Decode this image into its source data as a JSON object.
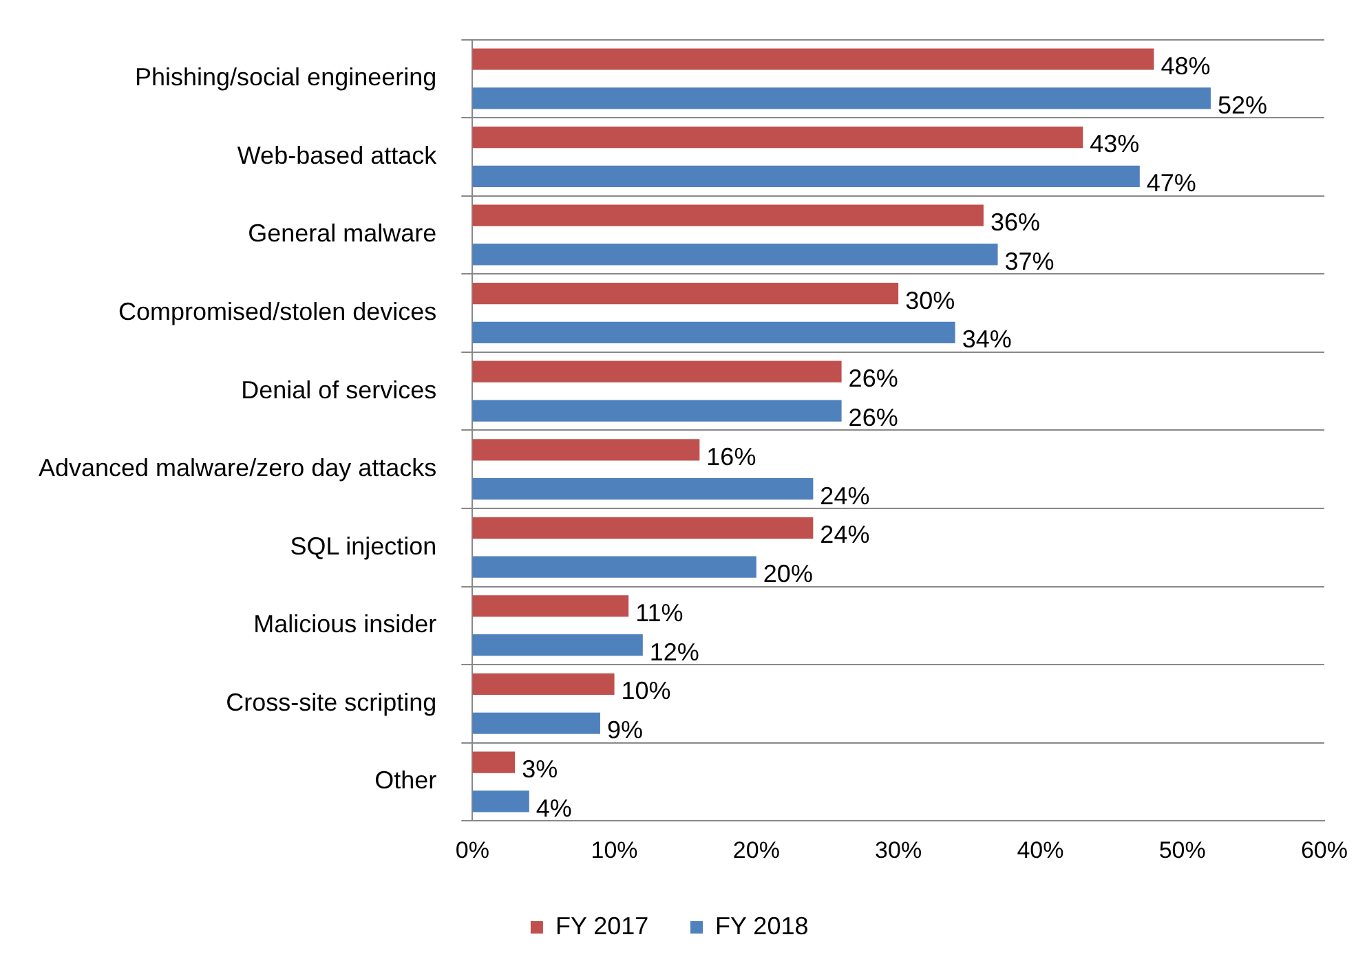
{
  "chart_data": {
    "type": "bar",
    "orientation": "horizontal",
    "categories": [
      "Phishing/social engineering",
      "Web-based attack",
      "General malware",
      "Compromised/stolen devices",
      "Denial of services",
      "Advanced malware/zero day attacks",
      "SQL injection",
      "Malicious insider",
      "Cross-site scripting",
      "Other"
    ],
    "series": [
      {
        "name": "FY 2017",
        "color": "#c0504d",
        "values": [
          48,
          43,
          36,
          30,
          26,
          16,
          24,
          11,
          10,
          3
        ],
        "value_labels": [
          "48%",
          "43%",
          "36%",
          "30%",
          "26%",
          "16%",
          "24%",
          "11%",
          "10%",
          "3%"
        ]
      },
      {
        "name": "FY 2018",
        "color": "#4f81bd",
        "values": [
          52,
          47,
          37,
          34,
          26,
          24,
          20,
          12,
          9,
          4
        ],
        "value_labels": [
          "52%",
          "47%",
          "37%",
          "34%",
          "26%",
          "24%",
          "20%",
          "12%",
          "9%",
          "4%"
        ]
      }
    ],
    "xlim": [
      0,
      60
    ],
    "xticks": [
      {
        "value": 0,
        "label": "0%"
      },
      {
        "value": 10,
        "label": "10%"
      },
      {
        "value": 20,
        "label": "20%"
      },
      {
        "value": 30,
        "label": "30%"
      },
      {
        "value": 40,
        "label": "40%"
      },
      {
        "value": 50,
        "label": "50%"
      },
      {
        "value": 60,
        "label": "60%"
      }
    ],
    "grid": "y",
    "legend": "bottom"
  }
}
